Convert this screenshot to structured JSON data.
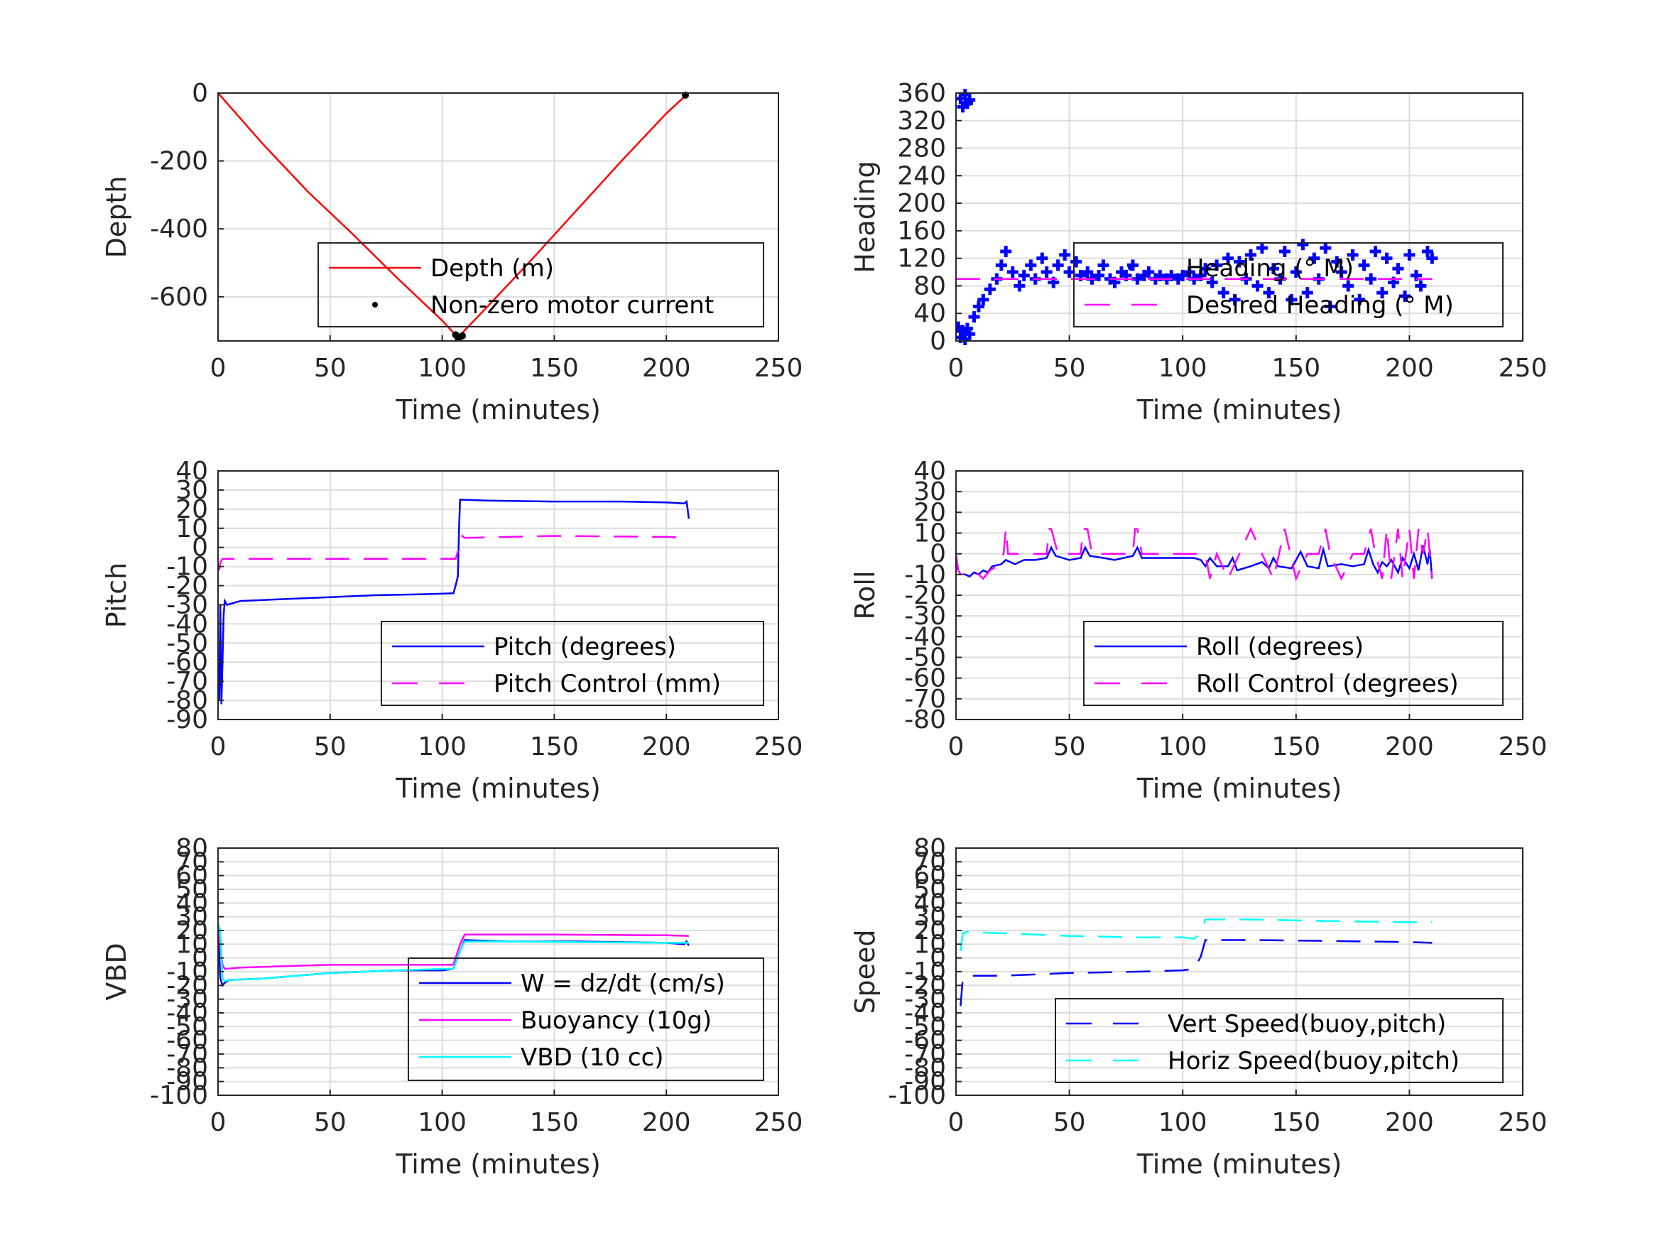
{
  "chart_data": [
    {
      "type": "line",
      "ylabel": "Depth",
      "xlabel": "Time (minutes)",
      "xlim": [
        0,
        250
      ],
      "ylim": [
        -730,
        0
      ],
      "xticks": [
        0,
        50,
        100,
        150,
        200,
        250
      ],
      "xtick_labels": [
        "0",
        "50",
        "100",
        "150",
        "200",
        "250"
      ],
      "yticks": [
        0,
        -200,
        -400,
        -600
      ],
      "ytick_labels": [
        "0",
        "-200",
        "-400",
        "-600"
      ],
      "grid": true,
      "legend_placement": "lower-right",
      "series": [
        {
          "name": "Depth (m)",
          "style": "solid",
          "color": "#ff0000",
          "x": [
            0,
            20,
            40,
            60,
            80,
            100,
            107,
            120,
            140,
            160,
            180,
            200,
            209
          ],
          "y": [
            0,
            -150,
            -290,
            -415,
            -545,
            -670,
            -720,
            -630,
            -490,
            -345,
            -200,
            -60,
            -5
          ]
        },
        {
          "name": "Non-zero motor current",
          "style": "markers",
          "color": "#000000",
          "x": [
            106,
            107,
            108,
            109,
            208.5
          ],
          "y": [
            -712,
            -720,
            -718,
            -715,
            -6
          ]
        }
      ]
    },
    {
      "type": "scatter",
      "ylabel": "Heading",
      "xlabel": "Time (minutes)",
      "xlim": [
        0,
        250
      ],
      "ylim": [
        0,
        360
      ],
      "xticks": [
        0,
        50,
        100,
        150,
        200,
        250
      ],
      "xtick_labels": [
        "0",
        "50",
        "100",
        "150",
        "200",
        "250"
      ],
      "yticks": [
        0,
        40,
        80,
        120,
        160,
        200,
        240,
        280,
        320,
        360
      ],
      "ytick_labels": [
        "0",
        "40",
        "80",
        "120",
        "160",
        "200",
        "240",
        "280",
        "320",
        "360"
      ],
      "grid": true,
      "legend_placement": "right",
      "series": [
        {
          "name": "Heading (° M)",
          "style": "markers",
          "color": "#0000ff",
          "x": [
            1,
            2,
            3,
            4,
            5,
            6,
            8,
            10,
            12,
            15,
            18,
            20,
            22,
            25,
            28,
            30,
            33,
            35,
            38,
            40,
            43,
            45,
            48,
            50,
            53,
            55,
            58,
            60,
            63,
            65,
            68,
            70,
            73,
            75,
            78,
            80,
            83,
            85,
            88,
            90,
            93,
            95,
            98,
            100,
            103,
            105,
            108,
            110,
            113,
            115,
            118,
            120,
            123,
            125,
            128,
            130,
            133,
            135,
            138,
            140,
            143,
            145,
            148,
            150,
            153,
            155,
            158,
            160,
            163,
            165,
            168,
            170,
            173,
            175,
            178,
            180,
            183,
            185,
            188,
            190,
            193,
            195,
            198,
            200,
            203,
            205,
            208,
            210
          ],
          "y": [
            20,
            5,
            15,
            2,
            18,
            10,
            35,
            50,
            60,
            75,
            90,
            110,
            130,
            100,
            80,
            95,
            110,
            90,
            120,
            100,
            85,
            110,
            125,
            100,
            115,
            95,
            100,
            90,
            95,
            110,
            90,
            85,
            100,
            95,
            110,
            90,
            95,
            100,
            90,
            95,
            90,
            95,
            90,
            95,
            100,
            90,
            95,
            105,
            85,
            110,
            70,
            120,
            60,
            115,
            90,
            125,
            80,
            135,
            70,
            105,
            90,
            130,
            60,
            100,
            140,
            70,
            120,
            90,
            135,
            50,
            115,
            100,
            80,
            125,
            60,
            110,
            90,
            130,
            70,
            120,
            85,
            105,
            65,
            125,
            95,
            80,
            130,
            120
          ]
        },
        {
          "name": "",
          "style": "markers",
          "color": "#0000ff",
          "x": [
            2,
            3,
            4,
            5,
            6
          ],
          "y": [
            352,
            340,
            358,
            345,
            350
          ]
        },
        {
          "name": "Desired Heading (° M)",
          "style": "dashed",
          "color": "#ff00ff",
          "x": [
            0,
            210
          ],
          "y": [
            90,
            90
          ]
        }
      ]
    },
    {
      "type": "line",
      "ylabel": "Pitch",
      "xlabel": "Time (minutes)",
      "xlim": [
        0,
        250
      ],
      "ylim": [
        -90,
        40
      ],
      "xticks": [
        0,
        50,
        100,
        150,
        200,
        250
      ],
      "xtick_labels": [
        "0",
        "50",
        "100",
        "150",
        "200",
        "250"
      ],
      "yticks": [
        -90,
        -80,
        -70,
        -60,
        -50,
        -40,
        -30,
        -20,
        -10,
        0,
        10,
        20,
        30,
        40
      ],
      "ytick_labels": [
        "-90",
        "-80",
        "-70",
        "-60",
        "-50",
        "-40",
        "-30",
        "-20",
        "-10",
        "0",
        "10",
        "20",
        "30",
        "40"
      ],
      "grid": true,
      "legend_placement": "lower-right",
      "series": [
        {
          "name": "Pitch (degrees)",
          "style": "solid",
          "color": "#0000ff",
          "x": [
            0.5,
            1,
            1.5,
            2,
            2.5,
            3,
            4,
            10,
            30,
            50,
            70,
            90,
            105,
            106,
            107,
            107.5,
            108,
            120,
            150,
            180,
            200,
            208,
            209,
            209.5,
            210
          ],
          "y": [
            -80,
            -30,
            -82,
            -60,
            -35,
            -28,
            -30,
            -28,
            -27,
            -26,
            -25,
            -24.5,
            -24,
            -20,
            -15,
            10,
            25,
            24.5,
            24,
            24,
            23.5,
            23,
            24,
            20,
            15
          ]
        },
        {
          "name": "Pitch Control (mm)",
          "style": "dashed",
          "color": "#ff00ff",
          "x": [
            0.5,
            1,
            2,
            3,
            5,
            50,
            100,
            106,
            107,
            108,
            109,
            110,
            150,
            200,
            210
          ],
          "y": [
            -12,
            -8,
            -6,
            -6,
            -6,
            -6,
            -6,
            -6,
            -2,
            -1,
            6,
            5,
            6,
            5.5,
            5
          ]
        }
      ]
    },
    {
      "type": "line",
      "ylabel": "Roll",
      "xlabel": "Time (minutes)",
      "xlim": [
        0,
        250
      ],
      "ylim": [
        -80,
        40
      ],
      "xticks": [
        0,
        50,
        100,
        150,
        200,
        250
      ],
      "xtick_labels": [
        "0",
        "50",
        "100",
        "150",
        "200",
        "250"
      ],
      "yticks": [
        -80,
        -70,
        -60,
        -50,
        -40,
        -30,
        -20,
        -10,
        0,
        10,
        20,
        30,
        40
      ],
      "ytick_labels": [
        "-80",
        "-70",
        "-60",
        "-50",
        "-40",
        "-30",
        "-20",
        "-10",
        "0",
        "10",
        "20",
        "30",
        "40"
      ],
      "grid": true,
      "legend_placement": "lower-right",
      "series": [
        {
          "name": "Roll (degrees)",
          "style": "solid",
          "color": "#0000ff",
          "x": [
            0,
            1,
            2,
            4,
            6,
            8,
            10,
            12,
            14,
            16,
            20,
            22,
            24,
            26,
            30,
            35,
            40,
            42,
            44,
            50,
            55,
            57,
            59,
            65,
            70,
            78,
            80,
            82,
            90,
            100,
            105,
            108,
            110,
            112,
            115,
            120,
            122,
            124,
            130,
            135,
            138,
            140,
            142,
            148,
            150,
            152,
            155,
            160,
            162,
            164,
            170,
            175,
            180,
            182,
            184,
            186,
            188,
            190,
            192,
            195,
            197,
            200,
            202,
            204,
            206,
            208,
            209,
            210
          ],
          "y": [
            -5,
            -8,
            -10,
            -10,
            -11,
            -9,
            -10,
            -8,
            -9,
            -6,
            -5,
            -3,
            -4,
            -5,
            -3,
            -3,
            -2,
            3,
            -1,
            -3,
            -2,
            3,
            -1,
            -2,
            -3,
            -1,
            3,
            -2,
            -2,
            -2,
            -2,
            -3,
            -6,
            -2,
            -6,
            -6,
            -2,
            -8,
            -6,
            -4,
            -7,
            -2,
            -6,
            -7,
            -3,
            1,
            -6,
            -7,
            2,
            -6,
            -5,
            -6,
            -5,
            2,
            -5,
            -9,
            -4,
            -6,
            -3,
            -9,
            -2,
            -7,
            0,
            -8,
            4,
            -5,
            2,
            -12
          ]
        },
        {
          "name": "Roll Control (degrees)",
          "style": "dashed",
          "color": "#ff00ff",
          "x": [
            0,
            1,
            2,
            5,
            10,
            12,
            15,
            18,
            20,
            21,
            22,
            23,
            25,
            30,
            35,
            40,
            41,
            42,
            45,
            55,
            56,
            58,
            60,
            75,
            78,
            79,
            80,
            82,
            85,
            100,
            105,
            110,
            112,
            115,
            120,
            125,
            130,
            135,
            140,
            145,
            150,
            155,
            160,
            163,
            165,
            170,
            175,
            180,
            183,
            185,
            188,
            190,
            192,
            195,
            197,
            200,
            202,
            204,
            206,
            208,
            210
          ],
          "y": [
            0,
            -8,
            -10,
            -10,
            -10,
            -12,
            -8,
            -6,
            -2,
            0,
            12,
            0,
            0,
            0,
            0,
            0,
            12,
            12,
            0,
            0,
            12,
            12,
            0,
            0,
            0,
            12,
            12,
            0,
            0,
            0,
            0,
            0,
            -12,
            0,
            -12,
            0,
            12,
            0,
            -12,
            12,
            -12,
            0,
            0,
            12,
            0,
            -12,
            0,
            0,
            12,
            0,
            -12,
            12,
            -12,
            12,
            -12,
            12,
            -12,
            12,
            0,
            12,
            -12
          ]
        }
      ]
    },
    {
      "type": "line",
      "ylabel": "VBD",
      "xlabel": "Time (minutes)",
      "xlim": [
        0,
        250
      ],
      "ylim": [
        -100,
        80
      ],
      "xticks": [
        0,
        50,
        100,
        150,
        200,
        250
      ],
      "xtick_labels": [
        "0",
        "50",
        "100",
        "150",
        "200",
        "250"
      ],
      "yticks": [
        -100,
        -90,
        -80,
        -70,
        -60,
        -50,
        -40,
        -30,
        -20,
        -10,
        0,
        10,
        20,
        30,
        40,
        50,
        60,
        70,
        80
      ],
      "ytick_labels": [
        "-100",
        "-90",
        "-80",
        "-70",
        "-60",
        "-50",
        "-40",
        "-30",
        "-20",
        "-10",
        "0",
        "10",
        "20",
        "30",
        "40",
        "50",
        "60",
        "70",
        "80"
      ],
      "grid": true,
      "legend_placement": "lower-right",
      "series": [
        {
          "name": "W = dz/dt (cm/s)",
          "style": "solid",
          "color": "#0000ff",
          "x": [
            0,
            1,
            2,
            3,
            5,
            20,
            50,
            80,
            100,
            105,
            108,
            110,
            130,
            160,
            200,
            208,
            209,
            210
          ],
          "y": [
            25,
            -15,
            -20,
            -18,
            -16,
            -15,
            -11,
            -9,
            -9,
            -8,
            5,
            13,
            12,
            12,
            11,
            10,
            12,
            9
          ]
        },
        {
          "name": "Buoyancy (10g)",
          "style": "solid",
          "color": "#ff00ff",
          "x": [
            0,
            2,
            3,
            10,
            50,
            100,
            105,
            108,
            110,
            150,
            200,
            210
          ],
          "y": [
            20,
            -5,
            -8,
            -7,
            -5,
            -5,
            -5,
            10,
            17,
            17,
            16.5,
            16
          ]
        },
        {
          "name": "VBD (10 cc)",
          "style": "solid",
          "color": "#00ffff",
          "x": [
            0,
            1,
            2,
            3,
            5,
            20,
            50,
            80,
            100,
            105,
            108,
            110,
            130,
            160,
            200,
            210
          ],
          "y": [
            25,
            20,
            -15,
            -17,
            -16,
            -15,
            -11,
            -9,
            -8,
            -8,
            5,
            12,
            12,
            11.5,
            11,
            11
          ]
        }
      ]
    },
    {
      "type": "line",
      "ylabel": "Speed",
      "xlabel": "Time (minutes)",
      "xlim": [
        0,
        250
      ],
      "ylim": [
        -100,
        80
      ],
      "xticks": [
        0,
        50,
        100,
        150,
        200,
        250
      ],
      "xtick_labels": [
        "0",
        "50",
        "100",
        "150",
        "200",
        "250"
      ],
      "yticks": [
        -100,
        -90,
        -80,
        -70,
        -60,
        -50,
        -40,
        -30,
        -20,
        -10,
        0,
        10,
        20,
        30,
        40,
        50,
        60,
        70,
        80
      ],
      "ytick_labels": [
        "-100",
        "-90",
        "-80",
        "-70",
        "-60",
        "-50",
        "-40",
        "-30",
        "-20",
        "-10",
        "0",
        "10",
        "20",
        "30",
        "40",
        "50",
        "60",
        "70",
        "80"
      ],
      "grid": true,
      "legend_placement": "lower-right",
      "series": [
        {
          "name": "Vert Speed(buoy,pitch)",
          "style": "dashed",
          "color": "#0000ff",
          "x": [
            2,
            3,
            5,
            20,
            50,
            80,
            100,
            105,
            108,
            110,
            130,
            160,
            200,
            210
          ],
          "y": [
            -35,
            -15,
            -13,
            -13,
            -11,
            -10,
            -9,
            -8,
            1,
            13,
            13,
            12.5,
            11.5,
            11
          ]
        },
        {
          "name": "Horiz Speed(buoy,pitch)",
          "style": "dashed",
          "color": "#00ffff",
          "x": [
            2,
            3,
            5,
            20,
            50,
            80,
            100,
            105,
            108,
            110,
            130,
            160,
            200,
            210
          ],
          "y": [
            5,
            18,
            19,
            18,
            16,
            15,
            15,
            14,
            18,
            28,
            28,
            27,
            26,
            26
          ]
        }
      ]
    }
  ]
}
